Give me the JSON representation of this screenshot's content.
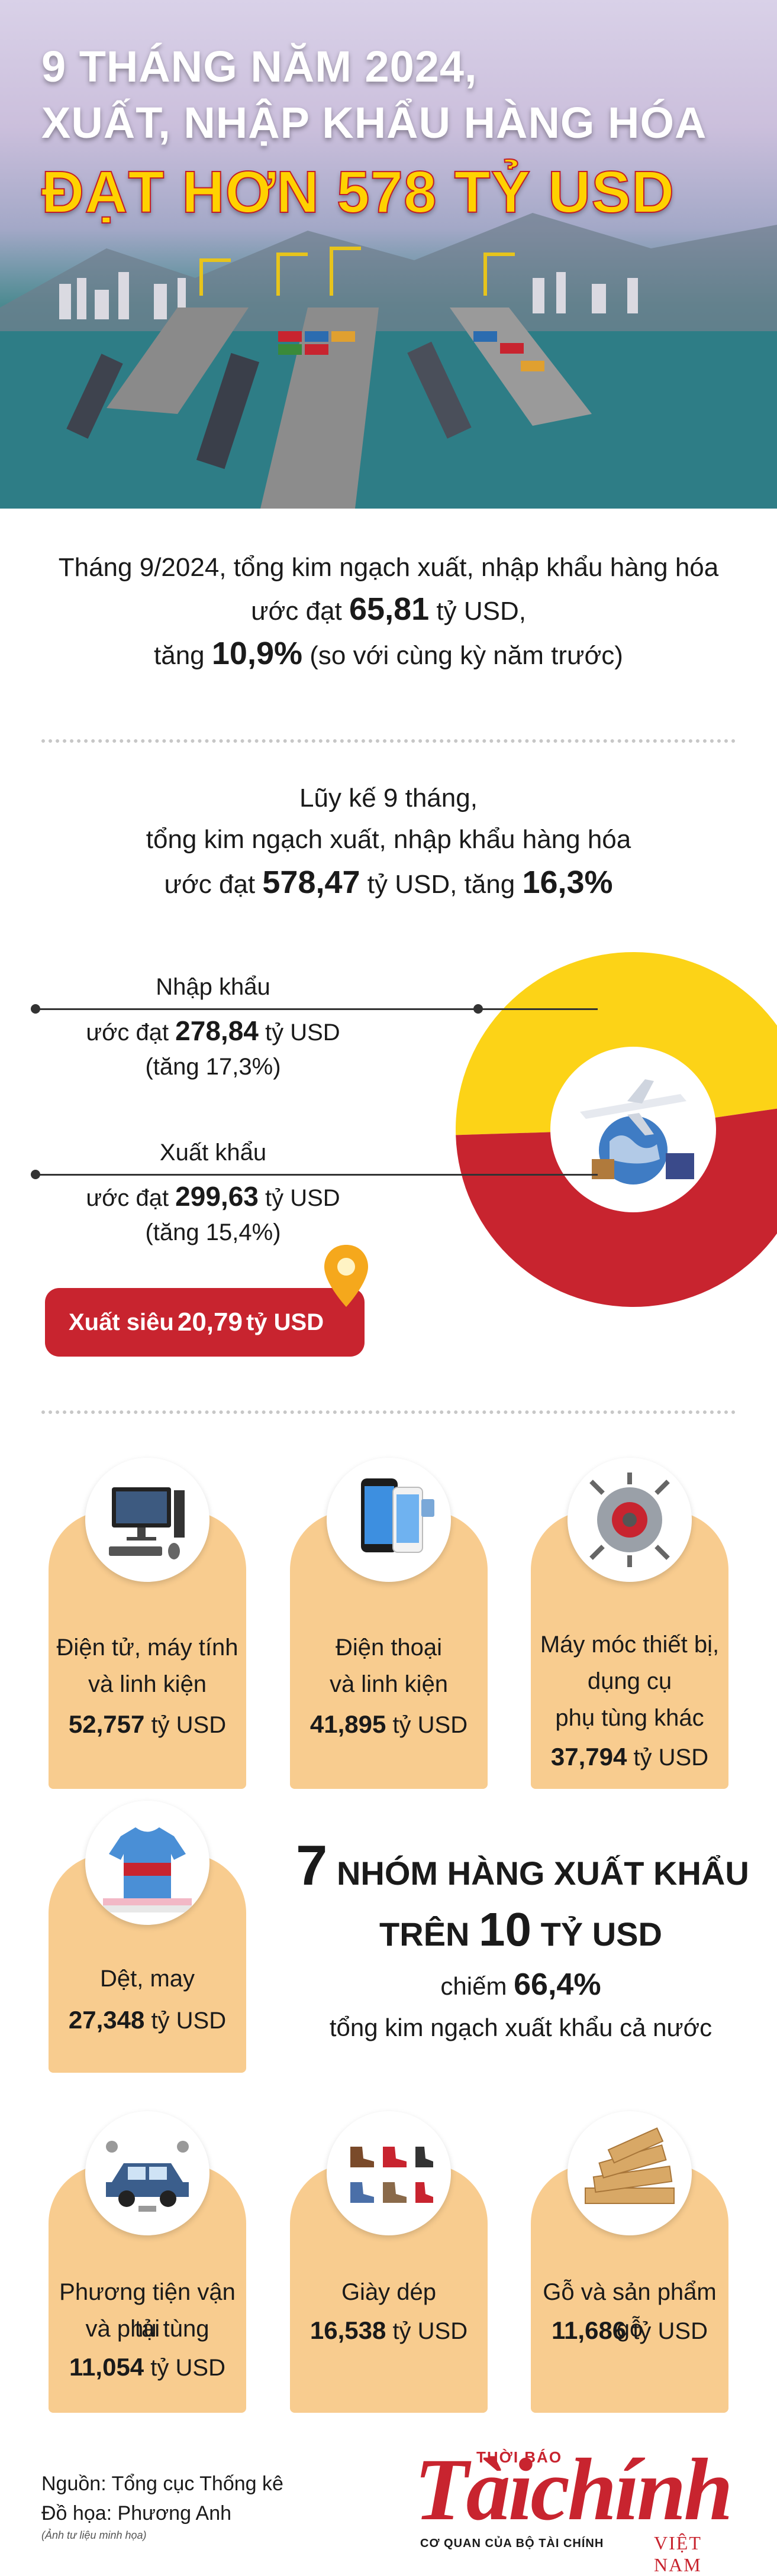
{
  "hero": {
    "line1": "9 THÁNG NĂM 2024,",
    "line2": "XUẤT, NHẬP KHẨU HÀNG HÓA",
    "line3": "ĐẠT HƠN 578 TỶ USD"
  },
  "september": {
    "line1": "Tháng 9/2024, tổng kim ngạch xuất, nhập khẩu hàng hóa",
    "line2_prefix": "ước đạt ",
    "line2_value": "65,81",
    "line2_suffix": " tỷ USD,",
    "line3_prefix": "tăng ",
    "line3_value": "10,9%",
    "line3_suffix": " (so với cùng kỳ năm trước)"
  },
  "cumulative": {
    "line1": "Lũy kế 9 tháng,",
    "line2": "tổng kim ngạch xuất, nhập khẩu hàng hóa",
    "line3_prefix": "ước đạt ",
    "line3_value": "578,47",
    "line3_mid": " tỷ USD, tăng ",
    "line3_growth": "16,3%"
  },
  "chart_data": {
    "type": "pie",
    "categories": [
      "Nhập khẩu",
      "Xuất khẩu"
    ],
    "values": [
      278.84,
      299.63
    ],
    "colors": [
      "#fcd317",
      "#c8242f"
    ]
  },
  "import_block": {
    "title": "Nhập khẩu",
    "value_prefix": "ước đạt ",
    "value": "278,84",
    "value_suffix": " tỷ USD",
    "growth": "(tăng 17,3%)"
  },
  "export_block": {
    "title": "Xuất khẩu",
    "value_prefix": "ước đạt ",
    "value": "299,63",
    "value_suffix": " tỷ USD",
    "growth": "(tăng 15,4%)"
  },
  "surplus": {
    "prefix": "Xuất siêu ",
    "value": "20,79",
    "suffix": " tỷ USD"
  },
  "products": [
    {
      "line1": "Điện tử, máy tính",
      "line2": "và linh kiện",
      "line3": "",
      "value": "52,757",
      "unit": " tỷ USD",
      "icon": "computer-icon"
    },
    {
      "line1": "Điện thoại",
      "line2": "và linh kiện",
      "line3": "",
      "value": "41,895",
      "unit": " tỷ USD",
      "icon": "phone-icon"
    },
    {
      "line1": "Máy móc thiết bị,",
      "line2": "dụng cụ",
      "line3": "phụ tùng khác",
      "value": "37,794",
      "unit": " tỷ USD",
      "icon": "machinery-icon"
    },
    {
      "line1": "Dệt, may",
      "line2": "",
      "line3": "",
      "value": "27,348",
      "unit": " tỷ USD",
      "icon": "tshirt-icon"
    },
    {
      "line1": "Phương tiện vận tải",
      "line2": "và phụ tùng",
      "line3": "",
      "value": "11,054",
      "unit": " tỷ USD",
      "icon": "car-icon"
    },
    {
      "line1": "Giày dép",
      "line2": "",
      "line3": "",
      "value": "16,538",
      "unit": " tỷ USD",
      "icon": "shoe-icon"
    },
    {
      "line1": "Gỗ và sản phẩm gỗ",
      "line2": "",
      "line3": "",
      "value": "11,686",
      "unit": " tỷ USD",
      "icon": "wood-icon"
    }
  ],
  "summary": {
    "num7": "7",
    "line1_rest": " NHÓM HÀNG XUẤT KHẨU",
    "line2_prefix": "TRÊN ",
    "line2_num": "10",
    "line2_suffix": " TỶ USD",
    "line3_prefix": "chiếm ",
    "line3_value": "66,4%",
    "line4": "tổng kim ngạch xuất khẩu cả nước"
  },
  "footer": {
    "source": "Nguồn: Tổng cục Thống kê",
    "graphics": "Đồ họa: Phương Anh",
    "photo_note": "(Ảnh tư liệu minh họa)",
    "logo_top": "THỜI BÁO",
    "logo_main": "Tàichính",
    "logo_bottom": "CƠ QUAN CỦA BỘ TÀI CHÍNH",
    "logo_country": "VIỆT NAM"
  },
  "colors": {
    "accent_red": "#c8242f",
    "accent_yellow": "#fcd317",
    "card_bg": "#f8cc8f"
  }
}
